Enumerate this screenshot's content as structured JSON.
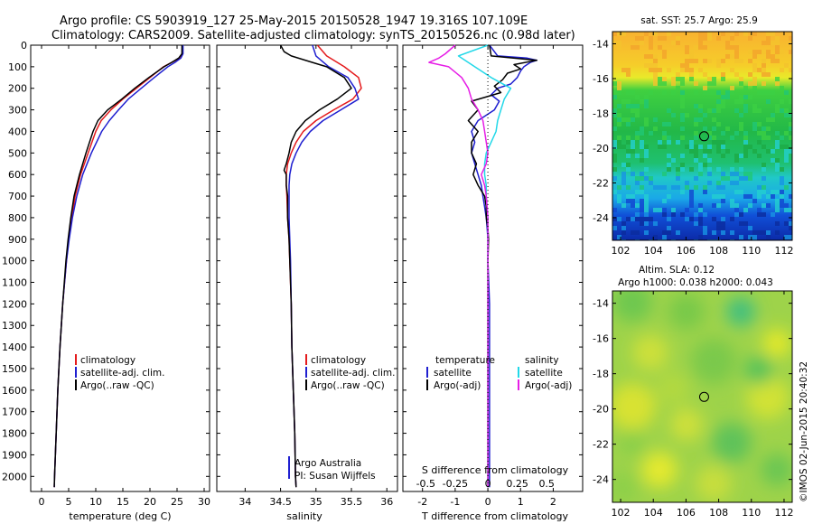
{
  "header": {
    "title_line1": "Argo profile: CS 5903919_127 25-May-2015 20150528_1947 19.316S 107.109E",
    "title_line2": "Climatology: CARS2009. Satellite-adjusted climatology: synTS_20150526.nc (0.98d later)"
  },
  "colors": {
    "climatology": "#e41a1c",
    "satellite": "#1f1fd0",
    "argo": "#000000",
    "sal_satellite": "#22d8e8",
    "sal_argo": "#e61ee6"
  },
  "chart_data": [
    {
      "type": "line",
      "id": "temperature",
      "xlabel": "temperature (deg C)",
      "ylabel": "",
      "xlim": [
        -2,
        31
      ],
      "ylim": [
        2070,
        0
      ],
      "xticks": [
        "0",
        "5",
        "10",
        "15",
        "20",
        "25",
        "30"
      ],
      "xtick_values": [
        0,
        5,
        10,
        15,
        20,
        25,
        30
      ],
      "yticks": [
        "0",
        "100",
        "200",
        "300",
        "400",
        "500",
        "600",
        "700",
        "800",
        "900",
        "1000",
        "1100",
        "1200",
        "1300",
        "1400",
        "1500",
        "1600",
        "1700",
        "1800",
        "1900",
        "2000"
      ],
      "ytick_values": [
        0,
        100,
        200,
        300,
        400,
        500,
        600,
        700,
        800,
        900,
        1000,
        1100,
        1200,
        1300,
        1400,
        1500,
        1600,
        1700,
        1800,
        1900,
        2000
      ],
      "legend": [
        "climatology",
        "satellite-adj. clim.",
        "Argo(..raw -QC)"
      ],
      "series": [
        {
          "name": "climatology",
          "color_key": "climatology",
          "depth": [
            0,
            40,
            60,
            80,
            100,
            150,
            200,
            250,
            300,
            350,
            400,
            500,
            600,
            700,
            800,
            900,
            1000,
            1200,
            1400,
            1600,
            1800,
            2000,
            2050
          ],
          "values": [
            26,
            26,
            25.5,
            24,
            22.5,
            20,
            17.5,
            15,
            12.8,
            11,
            10,
            8.6,
            7.2,
            6.2,
            5.6,
            5,
            4.6,
            3.9,
            3.4,
            3,
            2.7,
            2.4,
            2.35
          ]
        },
        {
          "name": "satellite-adj. clim.",
          "color_key": "satellite",
          "depth": [
            0,
            40,
            60,
            80,
            100,
            150,
            200,
            250,
            300,
            350,
            400,
            500,
            600,
            700,
            800,
            900,
            1000,
            1200,
            1400,
            1600,
            1800,
            2000,
            2050
          ],
          "values": [
            26.1,
            26.1,
            25.7,
            24.6,
            23.3,
            20.8,
            18.4,
            16,
            14.2,
            12.5,
            11.1,
            9.2,
            7.6,
            6.5,
            5.7,
            5.1,
            4.6,
            3.9,
            3.4,
            3,
            2.7,
            2.4,
            2.35
          ]
        },
        {
          "name": "Argo(..raw -QC)",
          "color_key": "argo",
          "depth": [
            0,
            40,
            60,
            80,
            100,
            150,
            200,
            250,
            300,
            350,
            400,
            500,
            600,
            700,
            800,
            900,
            1000,
            1200,
            1400,
            1600,
            1800,
            2000,
            2050
          ],
          "values": [
            25.9,
            25.9,
            25.3,
            24,
            22.6,
            19.8,
            17.2,
            14.8,
            12.2,
            10.4,
            9.5,
            8.2,
            7,
            6,
            5.4,
            4.9,
            4.5,
            3.9,
            3.4,
            3,
            2.7,
            2.4,
            2.35
          ]
        }
      ]
    },
    {
      "type": "line",
      "id": "salinity",
      "xlabel": "salinity",
      "xlim": [
        33.6,
        36.15
      ],
      "ylim": [
        2070,
        0
      ],
      "xticks": [
        "34",
        "34.5",
        "35",
        "35.5",
        "36"
      ],
      "xtick_values": [
        34,
        34.5,
        35,
        35.5,
        36
      ],
      "legend": [
        "climatology",
        "satellite-adj. clim.",
        "Argo(..raw -QC)"
      ],
      "series": [
        {
          "name": "climatology",
          "color_key": "climatology",
          "depth": [
            0,
            50,
            100,
            150,
            200,
            250,
            300,
            350,
            400,
            450,
            500,
            550,
            600,
            650,
            700,
            800,
            900,
            1000,
            1200,
            1400,
            1600,
            1800,
            2000,
            2050
          ],
          "values": [
            35.02,
            35.15,
            35.4,
            35.6,
            35.64,
            35.52,
            35.25,
            35.0,
            34.82,
            34.72,
            34.65,
            34.6,
            34.58,
            34.58,
            34.59,
            34.6,
            34.62,
            34.63,
            34.65,
            34.66,
            34.68,
            34.7,
            34.71,
            34.72
          ]
        },
        {
          "name": "satellite-adj. clim.",
          "color_key": "satellite",
          "depth": [
            0,
            50,
            100,
            150,
            200,
            250,
            300,
            350,
            400,
            450,
            500,
            550,
            600,
            650,
            700,
            800,
            900,
            1000,
            1200,
            1400,
            1600,
            1800,
            2000,
            2050
          ],
          "values": [
            34.95,
            35.0,
            35.18,
            35.45,
            35.55,
            35.6,
            35.35,
            35.1,
            34.92,
            34.8,
            34.72,
            34.66,
            34.63,
            34.62,
            34.62,
            34.62,
            34.63,
            34.64,
            34.65,
            34.66,
            34.68,
            34.7,
            34.71,
            34.72
          ]
        },
        {
          "name": "Argo(..raw -QC)",
          "color_key": "argo",
          "depth": [
            0,
            30,
            50,
            80,
            100,
            150,
            200,
            250,
            300,
            350,
            400,
            450,
            500,
            550,
            580,
            600,
            650,
            700,
            800,
            900,
            1000,
            1200,
            1400,
            1600,
            1800,
            2000,
            2050
          ],
          "values": [
            34.5,
            34.55,
            34.65,
            34.95,
            35.15,
            35.4,
            35.5,
            35.3,
            35.05,
            34.85,
            34.72,
            34.65,
            34.62,
            34.58,
            34.55,
            34.58,
            34.58,
            34.6,
            34.6,
            34.62,
            34.63,
            34.65,
            34.66,
            34.68,
            34.7,
            34.71,
            34.72
          ]
        }
      ],
      "annotation_line1": "Argo Australia",
      "annotation_line2": "PI: Susan Wijffels"
    },
    {
      "type": "line",
      "id": "difference",
      "xlabel": "T difference from climatology",
      "top_xlabel": "S difference from climatology",
      "xlim": [
        -2.6,
        2.9
      ],
      "ylim": [
        2070,
        0
      ],
      "xticks": [
        "-2",
        "-1",
        "0",
        "1",
        "2"
      ],
      "xtick_values": [
        -2,
        -1,
        0,
        1,
        2
      ],
      "top_xticks": [
        "-0.5",
        "-0.25",
        "0",
        "0.25",
        "0.5"
      ],
      "top_xtick_values": [
        -1.9,
        -1.0,
        0,
        0.9,
        1.8
      ],
      "legend_temperature_header": "temperature",
      "legend_salinity_header": "salinity",
      "legend_temperature": [
        "satellite",
        "Argo(-adj)"
      ],
      "legend_salinity": [
        "satellite",
        "Argo(-adj)"
      ],
      "series": [
        {
          "name": "T satellite",
          "color_key": "satellite",
          "depth": [
            0,
            50,
            60,
            70,
            80,
            100,
            120,
            150,
            180,
            200,
            230,
            260,
            300,
            350,
            400,
            450,
            500,
            550,
            600,
            650,
            700,
            750,
            800,
            850,
            900,
            1000,
            1200,
            1500,
            1800,
            2050
          ],
          "values": [
            0.05,
            0.3,
            1.2,
            1.5,
            1.3,
            1.1,
            1.0,
            0.9,
            0.7,
            0.3,
            0.1,
            0.35,
            0.2,
            -0.3,
            -0.5,
            -0.4,
            -0.5,
            -0.4,
            -0.3,
            -0.2,
            -0.15,
            -0.1,
            -0.05,
            -0.02,
            0,
            0,
            0.05,
            0.05,
            0.05,
            0.05
          ]
        },
        {
          "name": "T Argo(-adj)",
          "color_key": "argo",
          "depth": [
            0,
            50,
            70,
            90,
            110,
            130,
            160,
            190,
            220,
            260,
            300,
            350,
            400,
            450,
            500,
            550,
            600,
            650,
            700,
            750,
            800,
            850,
            900,
            1000,
            1200,
            1500,
            1800,
            2050
          ],
          "values": [
            0.05,
            0.1,
            1.5,
            0.8,
            1.0,
            0.6,
            0.45,
            0.2,
            0.4,
            -0.5,
            -0.3,
            -0.6,
            -0.3,
            -0.5,
            -0.5,
            -0.35,
            -0.45,
            -0.3,
            -0.1,
            -0.05,
            -0.05,
            0,
            0.02,
            0,
            0,
            0,
            0,
            0
          ]
        },
        {
          "name": "S satellite",
          "color_key": "sal_satellite",
          "depth": [
            0,
            50,
            80,
            100,
            150,
            200,
            250,
            300,
            350,
            400,
            450,
            500,
            550,
            600,
            650,
            700,
            800,
            900,
            1000,
            1200,
            1500,
            1800,
            2050
          ],
          "values": [
            0,
            -0.9,
            -0.6,
            -0.4,
            0.1,
            0.7,
            0.5,
            0.4,
            0.3,
            0.25,
            0.1,
            -0.05,
            -0.1,
            -0.1,
            -0.05,
            -0.05,
            0,
            0,
            0,
            0,
            0,
            0,
            0
          ]
        },
        {
          "name": "S Argo(-adj)",
          "color_key": "sal_argo",
          "depth": [
            0,
            40,
            60,
            80,
            100,
            150,
            200,
            250,
            300,
            350,
            400,
            450,
            500,
            550,
            600,
            650,
            700,
            800,
            900,
            1000,
            1200,
            1500,
            1800,
            2050
          ],
          "values": [
            -1.0,
            -1.3,
            -1.5,
            -1.8,
            -1.2,
            -0.8,
            -0.6,
            -0.5,
            -0.3,
            -0.15,
            -0.1,
            -0.05,
            0,
            -0.05,
            -0.2,
            -0.1,
            -0.05,
            0,
            0,
            0,
            0,
            0,
            0,
            0
          ]
        }
      ]
    },
    {
      "type": "heatmap",
      "id": "sst_map",
      "title": "sat. SST: 25.7 Argo: 25.9",
      "xlim": [
        101.5,
        112.5
      ],
      "ylim": [
        -25.3,
        -13.3
      ],
      "xticks": [
        "102",
        "104",
        "106",
        "108",
        "110",
        "112"
      ],
      "xtick_values": [
        102,
        104,
        106,
        108,
        110,
        112
      ],
      "yticks": [
        "-14",
        "-16",
        "-18",
        "-20",
        "-22",
        "-24"
      ],
      "ytick_values": [
        -14,
        -16,
        -18,
        -20,
        -22,
        -24
      ],
      "float_position": [
        107.109,
        -19.316
      ]
    },
    {
      "type": "heatmap",
      "id": "sla_map",
      "title_line1": "Altim. SLA: 0.12",
      "title_line2": "Argo h1000: 0.038 h2000: 0.043",
      "xlim": [
        101.5,
        112.5
      ],
      "ylim": [
        -25.3,
        -13.3
      ],
      "xticks": [
        "102",
        "104",
        "106",
        "108",
        "110",
        "112"
      ],
      "xtick_values": [
        102,
        104,
        106,
        108,
        110,
        112
      ],
      "yticks": [
        "-14",
        "-16",
        "-18",
        "-20",
        "-22",
        "-24"
      ],
      "ytick_values": [
        -14,
        -16,
        -18,
        -20,
        -22,
        -24
      ],
      "float_position": [
        107.109,
        -19.316
      ]
    }
  ],
  "footer": {
    "stamp": "©IMOS 02-Jun-2015 20:40:32"
  }
}
